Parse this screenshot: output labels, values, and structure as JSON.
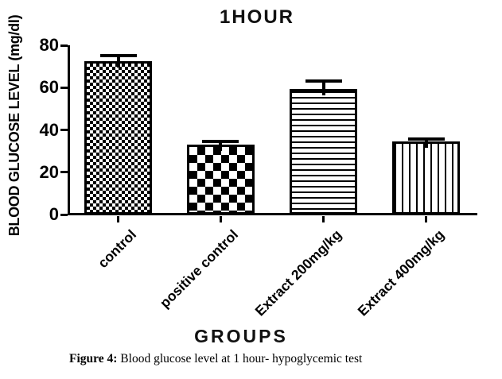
{
  "title": "1HOUR",
  "ylabel": "BLOOD GLUCOSE LEVEL (mg/dl)",
  "xlabel": "GROUPS",
  "caption": {
    "prefix": "Figure 4:",
    "text": " Blood glucose level at 1 hour- hypoglycemic test"
  },
  "chart_data": {
    "type": "bar",
    "title": "1HOUR",
    "xlabel": "GROUPS",
    "ylabel": "BLOOD GLUCOSE LEVEL (mg/dl)",
    "categories": [
      "control",
      "positive control",
      "Extract 200mg/kg",
      "Extract 400mg/kg"
    ],
    "values": [
      72.5,
      33,
      59.5,
      34.5
    ],
    "errors": [
      2.5,
      1.5,
      3.5,
      1
    ],
    "error_direction": "upper-only",
    "patterns": [
      "checker-fine",
      "checker-coarse",
      "hlines",
      "vlines"
    ],
    "ylim": [
      0,
      80
    ],
    "yticks": [
      0,
      20,
      40,
      60,
      80
    ],
    "grid": false,
    "legend": "none",
    "bar_fill": "#ffffff",
    "pattern_color": "#000000",
    "axis_color": "#000000"
  }
}
